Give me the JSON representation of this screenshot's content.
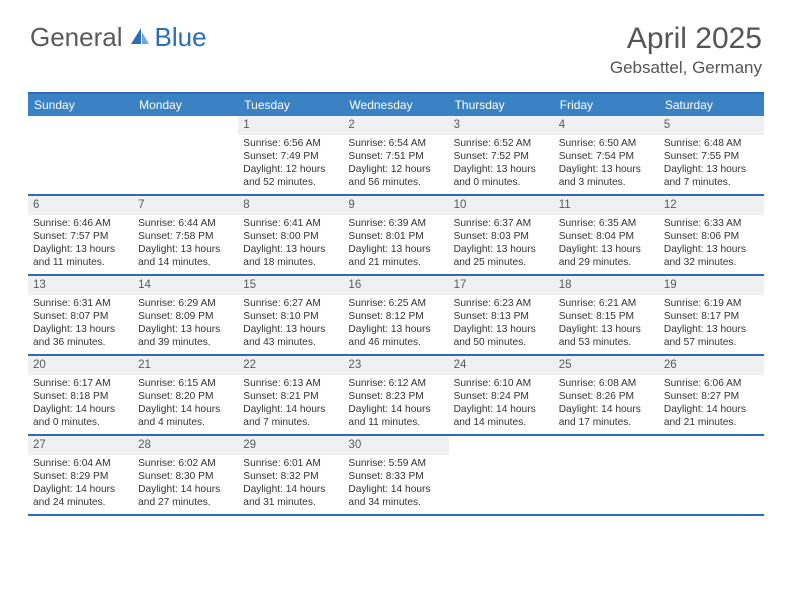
{
  "logo": {
    "text1": "General",
    "text2": "Blue"
  },
  "title": {
    "month": "April 2025",
    "location": "Gebsattel, Germany"
  },
  "colors": {
    "header_bg": "#3a82c4",
    "border": "#2a6db5",
    "daynum_bg": "#eef0f2",
    "text": "#333333",
    "title_text": "#555555",
    "logo_gray": "#5a5a5a",
    "logo_blue": "#2a6db5",
    "page_bg": "#ffffff"
  },
  "day_headers": [
    "Sunday",
    "Monday",
    "Tuesday",
    "Wednesday",
    "Thursday",
    "Friday",
    "Saturday"
  ],
  "weeks": [
    [
      null,
      null,
      {
        "n": "1",
        "sr": "Sunrise: 6:56 AM",
        "ss": "Sunset: 7:49 PM",
        "dl": "Daylight: 12 hours and 52 minutes."
      },
      {
        "n": "2",
        "sr": "Sunrise: 6:54 AM",
        "ss": "Sunset: 7:51 PM",
        "dl": "Daylight: 12 hours and 56 minutes."
      },
      {
        "n": "3",
        "sr": "Sunrise: 6:52 AM",
        "ss": "Sunset: 7:52 PM",
        "dl": "Daylight: 13 hours and 0 minutes."
      },
      {
        "n": "4",
        "sr": "Sunrise: 6:50 AM",
        "ss": "Sunset: 7:54 PM",
        "dl": "Daylight: 13 hours and 3 minutes."
      },
      {
        "n": "5",
        "sr": "Sunrise: 6:48 AM",
        "ss": "Sunset: 7:55 PM",
        "dl": "Daylight: 13 hours and 7 minutes."
      }
    ],
    [
      {
        "n": "6",
        "sr": "Sunrise: 6:46 AM",
        "ss": "Sunset: 7:57 PM",
        "dl": "Daylight: 13 hours and 11 minutes."
      },
      {
        "n": "7",
        "sr": "Sunrise: 6:44 AM",
        "ss": "Sunset: 7:58 PM",
        "dl": "Daylight: 13 hours and 14 minutes."
      },
      {
        "n": "8",
        "sr": "Sunrise: 6:41 AM",
        "ss": "Sunset: 8:00 PM",
        "dl": "Daylight: 13 hours and 18 minutes."
      },
      {
        "n": "9",
        "sr": "Sunrise: 6:39 AM",
        "ss": "Sunset: 8:01 PM",
        "dl": "Daylight: 13 hours and 21 minutes."
      },
      {
        "n": "10",
        "sr": "Sunrise: 6:37 AM",
        "ss": "Sunset: 8:03 PM",
        "dl": "Daylight: 13 hours and 25 minutes."
      },
      {
        "n": "11",
        "sr": "Sunrise: 6:35 AM",
        "ss": "Sunset: 8:04 PM",
        "dl": "Daylight: 13 hours and 29 minutes."
      },
      {
        "n": "12",
        "sr": "Sunrise: 6:33 AM",
        "ss": "Sunset: 8:06 PM",
        "dl": "Daylight: 13 hours and 32 minutes."
      }
    ],
    [
      {
        "n": "13",
        "sr": "Sunrise: 6:31 AM",
        "ss": "Sunset: 8:07 PM",
        "dl": "Daylight: 13 hours and 36 minutes."
      },
      {
        "n": "14",
        "sr": "Sunrise: 6:29 AM",
        "ss": "Sunset: 8:09 PM",
        "dl": "Daylight: 13 hours and 39 minutes."
      },
      {
        "n": "15",
        "sr": "Sunrise: 6:27 AM",
        "ss": "Sunset: 8:10 PM",
        "dl": "Daylight: 13 hours and 43 minutes."
      },
      {
        "n": "16",
        "sr": "Sunrise: 6:25 AM",
        "ss": "Sunset: 8:12 PM",
        "dl": "Daylight: 13 hours and 46 minutes."
      },
      {
        "n": "17",
        "sr": "Sunrise: 6:23 AM",
        "ss": "Sunset: 8:13 PM",
        "dl": "Daylight: 13 hours and 50 minutes."
      },
      {
        "n": "18",
        "sr": "Sunrise: 6:21 AM",
        "ss": "Sunset: 8:15 PM",
        "dl": "Daylight: 13 hours and 53 minutes."
      },
      {
        "n": "19",
        "sr": "Sunrise: 6:19 AM",
        "ss": "Sunset: 8:17 PM",
        "dl": "Daylight: 13 hours and 57 minutes."
      }
    ],
    [
      {
        "n": "20",
        "sr": "Sunrise: 6:17 AM",
        "ss": "Sunset: 8:18 PM",
        "dl": "Daylight: 14 hours and 0 minutes."
      },
      {
        "n": "21",
        "sr": "Sunrise: 6:15 AM",
        "ss": "Sunset: 8:20 PM",
        "dl": "Daylight: 14 hours and 4 minutes."
      },
      {
        "n": "22",
        "sr": "Sunrise: 6:13 AM",
        "ss": "Sunset: 8:21 PM",
        "dl": "Daylight: 14 hours and 7 minutes."
      },
      {
        "n": "23",
        "sr": "Sunrise: 6:12 AM",
        "ss": "Sunset: 8:23 PM",
        "dl": "Daylight: 14 hours and 11 minutes."
      },
      {
        "n": "24",
        "sr": "Sunrise: 6:10 AM",
        "ss": "Sunset: 8:24 PM",
        "dl": "Daylight: 14 hours and 14 minutes."
      },
      {
        "n": "25",
        "sr": "Sunrise: 6:08 AM",
        "ss": "Sunset: 8:26 PM",
        "dl": "Daylight: 14 hours and 17 minutes."
      },
      {
        "n": "26",
        "sr": "Sunrise: 6:06 AM",
        "ss": "Sunset: 8:27 PM",
        "dl": "Daylight: 14 hours and 21 minutes."
      }
    ],
    [
      {
        "n": "27",
        "sr": "Sunrise: 6:04 AM",
        "ss": "Sunset: 8:29 PM",
        "dl": "Daylight: 14 hours and 24 minutes."
      },
      {
        "n": "28",
        "sr": "Sunrise: 6:02 AM",
        "ss": "Sunset: 8:30 PM",
        "dl": "Daylight: 14 hours and 27 minutes."
      },
      {
        "n": "29",
        "sr": "Sunrise: 6:01 AM",
        "ss": "Sunset: 8:32 PM",
        "dl": "Daylight: 14 hours and 31 minutes."
      },
      {
        "n": "30",
        "sr": "Sunrise: 5:59 AM",
        "ss": "Sunset: 8:33 PM",
        "dl": "Daylight: 14 hours and 34 minutes."
      },
      null,
      null,
      null
    ]
  ]
}
